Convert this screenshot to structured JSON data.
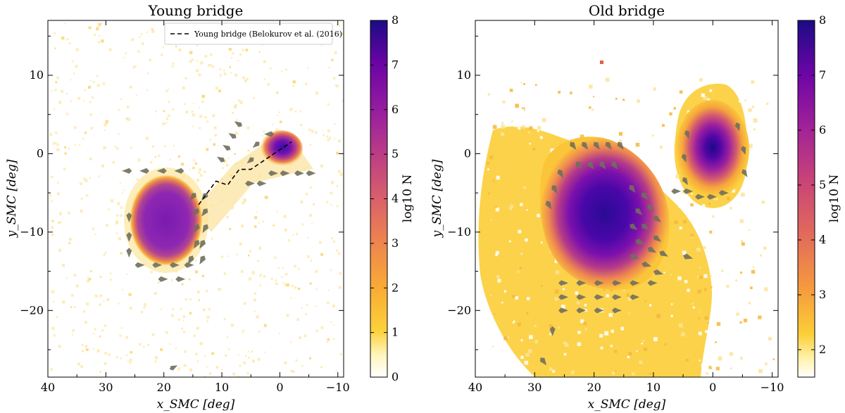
{
  "chart_data": [
    {
      "type": "heatmap",
      "title": "Young bridge",
      "xlabel": "x_SMC [deg]",
      "ylabel": "y_SMC [deg]",
      "xlim": [
        40,
        -11
      ],
      "ylim": [
        -28.5,
        17
      ],
      "x_ticks": [
        40,
        30,
        20,
        10,
        0,
        -10
      ],
      "x_tick_labels": [
        "40",
        "30",
        "20",
        "10",
        "0",
        "−10"
      ],
      "y_ticks": [
        10,
        0,
        -10,
        -20
      ],
      "y_tick_labels": [
        "10",
        "0",
        "−10",
        "−20"
      ],
      "colorbar": {
        "label": "log10 N",
        "range": [
          0,
          8
        ],
        "ticks": [
          "0",
          "1",
          "2",
          "3",
          "4",
          "5",
          "6",
          "7",
          "8"
        ]
      },
      "legend": {
        "entries": [
          "Young bridge (Belokurov et al. (2016)"
        ],
        "placement": "top-right"
      },
      "density_blobs": [
        {
          "cx": 19.5,
          "cy": -8.5,
          "rx": 6.5,
          "ry": 7.5,
          "peak": 7.2
        },
        {
          "cx": 0.5,
          "cy": 0.0,
          "rx": 3.8,
          "ry": 3.0,
          "peak": 7.3
        }
      ],
      "bridge_line": {
        "x": [
          14,
          11,
          9,
          7,
          5,
          -2
        ],
        "y": [
          -6.5,
          -3.5,
          -4.0,
          -2.0,
          -2.0,
          1.5
        ]
      },
      "arrows": [
        [
          25.5,
          -2.2,
          1,
          0
        ],
        [
          22.5,
          -2.2,
          1,
          0
        ],
        [
          19.5,
          -2.2,
          1,
          0
        ],
        [
          16.5,
          -2.2,
          1,
          0
        ],
        [
          14.5,
          -5,
          0.6,
          -0.8
        ],
        [
          14,
          -7,
          0.6,
          -0.8
        ],
        [
          14,
          -9,
          0.5,
          -0.9
        ],
        [
          14,
          -11,
          0.5,
          -0.9
        ],
        [
          15,
          -13,
          0.5,
          -0.9
        ],
        [
          12.5,
          -5,
          0.6,
          -0.8
        ],
        [
          12.5,
          -7,
          0.6,
          -0.8
        ],
        [
          12.5,
          -9,
          0.5,
          -0.9
        ],
        [
          13,
          -11,
          0.5,
          -0.9
        ],
        [
          13,
          -13,
          0.5,
          -0.9
        ],
        [
          26,
          -7.5,
          0,
          -1
        ],
        [
          26,
          -10,
          0,
          -1
        ],
        [
          26,
          -12,
          0,
          -1
        ],
        [
          25,
          -14.2,
          -1,
          0
        ],
        [
          22,
          -14.2,
          -1,
          0
        ],
        [
          19,
          -14.2,
          -1,
          0
        ],
        [
          16.5,
          -14.2,
          -1,
          0
        ],
        [
          21,
          -16,
          -1,
          0
        ],
        [
          18,
          -16,
          -1,
          0
        ],
        [
          9.5,
          -1,
          0.8,
          0.5
        ],
        [
          8.5,
          0.5,
          0.8,
          0.5
        ],
        [
          7.5,
          2,
          0.8,
          0.5
        ],
        [
          6.5,
          3.5,
          0.8,
          0.5
        ],
        [
          6,
          -3.8,
          -1,
          0
        ],
        [
          4,
          -3.8,
          -1,
          0
        ],
        [
          2,
          -2.5,
          -1,
          0
        ],
        [
          0,
          -2.5,
          -1,
          0
        ],
        [
          -2.5,
          -2.5,
          -1,
          0
        ],
        [
          -4.5,
          -2.5,
          -1,
          0
        ],
        [
          4.5,
          -0.5,
          0.7,
          -0.6
        ],
        [
          3.5,
          1.5,
          0.7,
          -0.6
        ],
        [
          1,
          2.5,
          1,
          0
        ],
        [
          19,
          -27.5,
          -0.8,
          0.4
        ]
      ]
    },
    {
      "type": "heatmap",
      "title": "Old bridge",
      "xlabel": "x_SMC [deg]",
      "ylabel": "y_SMC [deg]",
      "xlim": [
        40,
        -11
      ],
      "ylim": [
        -28.5,
        17
      ],
      "x_ticks": [
        40,
        30,
        20,
        10,
        0,
        -10
      ],
      "x_tick_labels": [
        "40",
        "30",
        "20",
        "10",
        "0",
        "−10"
      ],
      "y_ticks": [
        10,
        0,
        -10,
        -20
      ],
      "y_tick_labels": [
        "10",
        "0",
        "−10",
        "−20"
      ],
      "colorbar": {
        "label": "log10 N",
        "range": [
          1.5,
          8
        ],
        "ticks": [
          "2",
          "3",
          "4",
          "5",
          "6",
          "7",
          "8"
        ]
      },
      "density_blobs": [
        {
          "cx": 19,
          "cy": -8,
          "rx": 11,
          "ry": 11,
          "peak": 7.8
        },
        {
          "cx": 0,
          "cy": 0,
          "rx": 5.5,
          "ry": 8,
          "peak": 7.8
        }
      ],
      "arrows": [
        [
          24,
          1.5,
          -0.6,
          -0.8
        ],
        [
          22,
          1.5,
          -0.6,
          -0.8
        ],
        [
          20,
          1.5,
          -0.6,
          -0.8
        ],
        [
          18,
          1.5,
          -0.6,
          -0.8
        ],
        [
          16,
          1.5,
          -0.6,
          -0.8
        ],
        [
          23,
          -1,
          -0.6,
          -0.8
        ],
        [
          21,
          -1,
          -0.6,
          -0.8
        ],
        [
          19,
          -1,
          -0.6,
          -0.8
        ],
        [
          17,
          -1,
          -0.6,
          -0.8
        ],
        [
          26,
          -2,
          -0.5,
          -0.9
        ],
        [
          27,
          -4,
          -0.5,
          -0.9
        ],
        [
          28,
          -6,
          -0.5,
          -0.9
        ],
        [
          14,
          -4,
          -0.6,
          -0.8
        ],
        [
          12,
          -5,
          -0.7,
          -0.7
        ],
        [
          11,
          -6.5,
          -0.7,
          -0.7
        ],
        [
          10,
          -8,
          -0.8,
          -0.6
        ],
        [
          13,
          -7,
          -0.7,
          -0.7
        ],
        [
          14,
          -9,
          -0.8,
          -0.6
        ],
        [
          12,
          -9,
          -0.8,
          -0.6
        ],
        [
          10,
          -10.5,
          -0.8,
          -0.6
        ],
        [
          13,
          -11,
          -0.9,
          -0.5
        ],
        [
          11,
          -12,
          -0.9,
          -0.5
        ],
        [
          9,
          -12.5,
          -0.9,
          -0.5
        ],
        [
          14,
          -13,
          -1,
          -0.3
        ],
        [
          12,
          -14,
          -1,
          -0.3
        ],
        [
          10,
          -15,
          -1,
          -0.3
        ],
        [
          26,
          -16.5,
          -1,
          0
        ],
        [
          23,
          -16.5,
          -1,
          0
        ],
        [
          20,
          -16.5,
          -1,
          0
        ],
        [
          17,
          -16.5,
          -1,
          0
        ],
        [
          14,
          -16.5,
          -1,
          0
        ],
        [
          11,
          -16.5,
          -1,
          0
        ],
        [
          26,
          -18.3,
          -1,
          0
        ],
        [
          23,
          -18.3,
          -1,
          0
        ],
        [
          20,
          -18.3,
          -1,
          0
        ],
        [
          17,
          -18.3,
          -1,
          0
        ],
        [
          14,
          -18.3,
          -1,
          0
        ],
        [
          26,
          -20,
          -1,
          0
        ],
        [
          23,
          -20,
          -1,
          0
        ],
        [
          20,
          -20,
          -1,
          0
        ],
        [
          17,
          -20,
          -1,
          0
        ],
        [
          7,
          -4.8,
          -1,
          0
        ],
        [
          5,
          -4.8,
          -1,
          0
        ],
        [
          3,
          -5.5,
          -1,
          0
        ],
        [
          1,
          -5.5,
          -1,
          0
        ],
        [
          -1,
          -5,
          -1,
          0
        ],
        [
          5,
          -3,
          -0.5,
          -0.8
        ],
        [
          5,
          0,
          -0.3,
          -0.9
        ],
        [
          4.5,
          3,
          -0.3,
          -0.9
        ],
        [
          -5,
          -2,
          -0.5,
          -0.8
        ],
        [
          -5,
          1,
          -0.3,
          -0.9
        ],
        [
          -4,
          4,
          -0.3,
          -0.9
        ],
        [
          27,
          -22,
          0,
          -1
        ],
        [
          29,
          -26,
          -0.6,
          -0.8
        ],
        [
          5,
          -13,
          -1,
          -0.3
        ]
      ]
    }
  ]
}
